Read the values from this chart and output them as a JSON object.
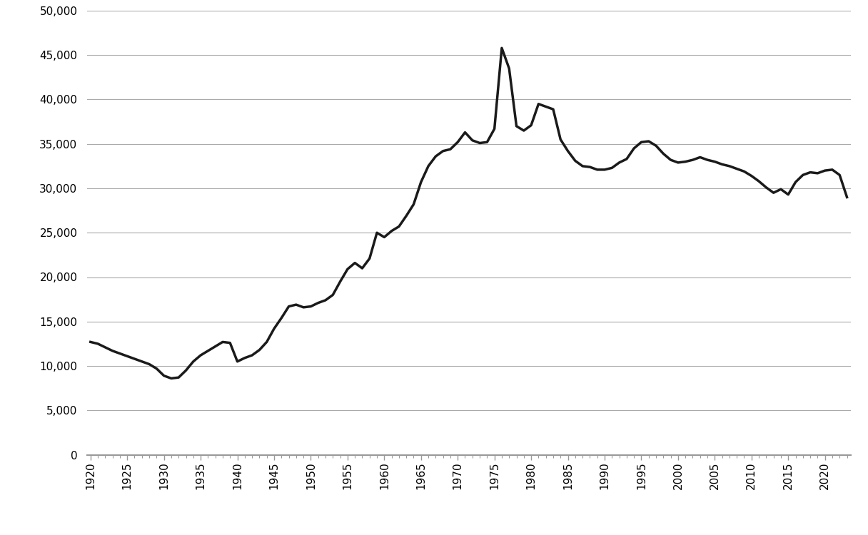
{
  "years": [
    1920,
    1921,
    1922,
    1923,
    1924,
    1925,
    1926,
    1927,
    1928,
    1929,
    1930,
    1931,
    1932,
    1933,
    1934,
    1935,
    1936,
    1937,
    1938,
    1939,
    1940,
    1941,
    1942,
    1943,
    1944,
    1945,
    1946,
    1947,
    1948,
    1949,
    1950,
    1951,
    1952,
    1953,
    1954,
    1955,
    1956,
    1957,
    1958,
    1959,
    1960,
    1961,
    1962,
    1963,
    1964,
    1965,
    1966,
    1967,
    1968,
    1969,
    1970,
    1971,
    1972,
    1973,
    1974,
    1975,
    1976,
    1977,
    1978,
    1979,
    1980,
    1981,
    1982,
    1983,
    1984,
    1985,
    1986,
    1987,
    1988,
    1989,
    1990,
    1991,
    1992,
    1993,
    1994,
    1995,
    1996,
    1997,
    1998,
    1999,
    2000,
    2001,
    2002,
    2003,
    2004,
    2005,
    2006,
    2007,
    2008,
    2009,
    2010,
    2011,
    2012,
    2013,
    2014,
    2015,
    2016,
    2017,
    2018,
    2019,
    2020,
    2021,
    2022,
    2023
  ],
  "values": [
    12700,
    12500,
    12100,
    11700,
    11400,
    11100,
    10800,
    10500,
    10200,
    9700,
    8900,
    8600,
    8700,
    9500,
    10500,
    11200,
    11700,
    12200,
    12700,
    12600,
    10500,
    10900,
    11200,
    11800,
    12700,
    14200,
    15400,
    16700,
    16900,
    16600,
    16700,
    17100,
    17400,
    18000,
    19500,
    20900,
    21600,
    21000,
    22100,
    25000,
    24500,
    25200,
    25700,
    26900,
    28200,
    30700,
    32500,
    33600,
    34200,
    34400,
    35200,
    36300,
    35400,
    35100,
    35200,
    36700,
    45800,
    43500,
    37000,
    36500,
    37100,
    39500,
    39200,
    38900,
    35500,
    34200,
    33100,
    32500,
    32400,
    32100,
    32100,
    32300,
    32900,
    33300,
    34500,
    35200,
    35300,
    34800,
    33900,
    33200,
    32900,
    33000,
    33200,
    33500,
    33200,
    33000,
    32700,
    32500,
    32200,
    31900,
    31400,
    30800,
    30100,
    29500,
    29900,
    29300,
    30700,
    31500,
    31800,
    31700,
    32000,
    32100,
    31500,
    29000
  ],
  "line_color": "#1a1a1a",
  "line_width": 2.5,
  "bg_color": "#ffffff",
  "grid_color": "#aaaaaa",
  "ylim": [
    0,
    50000
  ],
  "ytick_step": 5000,
  "xtick_years": [
    1920,
    1925,
    1930,
    1935,
    1940,
    1945,
    1950,
    1955,
    1960,
    1965,
    1970,
    1975,
    1980,
    1985,
    1990,
    1995,
    2000,
    2005,
    2010,
    2015,
    2020
  ],
  "figsize": [
    12.16,
    7.5
  ],
  "dpi": 100
}
